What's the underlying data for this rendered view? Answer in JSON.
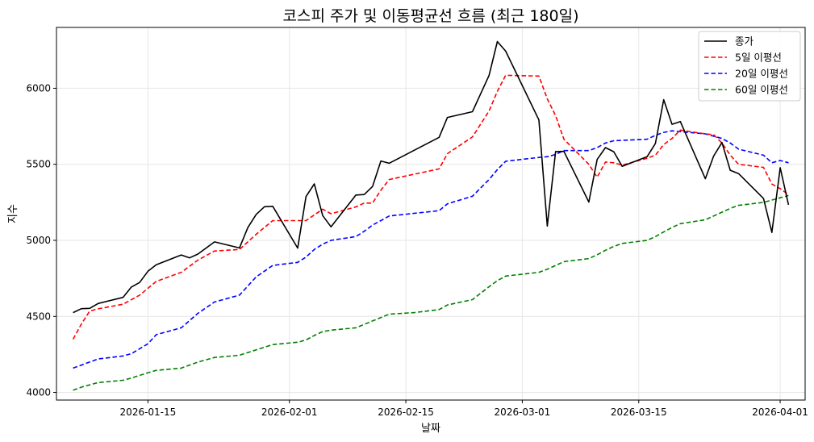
{
  "chart_data": {
    "type": "line",
    "title": "코스피 주가 및 이동평균선 흐름 (최근 180일)",
    "xlabel": "날짜",
    "ylabel": "지수",
    "x_ticks": [
      "2026-01-15",
      "2026-02-01",
      "2026-02-15",
      "2026-03-01",
      "2026-03-15",
      "2026-04-01"
    ],
    "y_ticks": [
      4000,
      4500,
      5000,
      5500,
      6000
    ],
    "xlim": [
      "2026-01-04",
      "2026-04-04"
    ],
    "ylim": [
      3950,
      6400
    ],
    "grid": true,
    "legend_position": "top-right",
    "colors": {
      "종가": "#000000",
      "5일 이평선": "#ff0000",
      "20일 이평선": "#0000ff",
      "60일 이평선": "#008000"
    },
    "series": [
      {
        "name": "종가",
        "style": "solid",
        "points": [
          [
            "2026-01-06",
            4525
          ],
          [
            "2026-01-07",
            4551
          ],
          [
            "2026-01-08",
            4553
          ],
          [
            "2026-01-09",
            4585
          ],
          [
            "2026-01-12",
            4625
          ],
          [
            "2026-01-13",
            4693
          ],
          [
            "2026-01-14",
            4723
          ],
          [
            "2026-01-15",
            4797
          ],
          [
            "2026-01-16",
            4840
          ],
          [
            "2026-01-19",
            4904
          ],
          [
            "2026-01-20",
            4885
          ],
          [
            "2026-01-21",
            4910
          ],
          [
            "2026-01-23",
            4990
          ],
          [
            "2026-01-26",
            4950
          ],
          [
            "2026-01-27",
            5084
          ],
          [
            "2026-01-28",
            5170
          ],
          [
            "2026-01-29",
            5221
          ],
          [
            "2026-01-30",
            5224
          ],
          [
            "2026-02-02",
            4949
          ],
          [
            "2026-02-03",
            5288
          ],
          [
            "2026-02-04",
            5371
          ],
          [
            "2026-02-05",
            5163
          ],
          [
            "2026-02-06",
            5089
          ],
          [
            "2026-02-09",
            5298
          ],
          [
            "2026-02-10",
            5301
          ],
          [
            "2026-02-11",
            5354
          ],
          [
            "2026-02-12",
            5522
          ],
          [
            "2026-02-13",
            5507
          ],
          [
            "2026-02-19",
            5677
          ],
          [
            "2026-02-20",
            5808
          ],
          [
            "2026-02-23",
            5846
          ],
          [
            "2026-02-25",
            6084
          ],
          [
            "2026-02-26",
            6307
          ],
          [
            "2026-02-27",
            6244
          ],
          [
            "2026-03-03",
            5792
          ],
          [
            "2026-03-04",
            5094
          ],
          [
            "2026-03-05",
            5584
          ],
          [
            "2026-03-06",
            5585
          ],
          [
            "2026-03-09",
            5252
          ],
          [
            "2026-03-10",
            5532
          ],
          [
            "2026-03-11",
            5610
          ],
          [
            "2026-03-12",
            5583
          ],
          [
            "2026-03-13",
            5487
          ],
          [
            "2026-03-16",
            5550
          ],
          [
            "2026-03-17",
            5637
          ],
          [
            "2026-03-18",
            5925
          ],
          [
            "2026-03-19",
            5763
          ],
          [
            "2026-03-20",
            5781
          ],
          [
            "2026-03-23",
            5405
          ],
          [
            "2026-03-24",
            5554
          ],
          [
            "2026-03-25",
            5643
          ],
          [
            "2026-03-26",
            5461
          ],
          [
            "2026-03-27",
            5439
          ],
          [
            "2026-03-30",
            5275
          ],
          [
            "2026-03-31",
            5052
          ],
          [
            "2026-04-01",
            5478
          ],
          [
            "2026-04-02",
            5234
          ]
        ]
      },
      {
        "name": "5일 이평선",
        "style": "dashed",
        "points": [
          [
            "2026-01-06",
            4350
          ],
          [
            "2026-01-07",
            4450
          ],
          [
            "2026-01-08",
            4535
          ],
          [
            "2026-01-09",
            4550
          ],
          [
            "2026-01-12",
            4580
          ],
          [
            "2026-01-14",
            4640
          ],
          [
            "2026-01-16",
            4730
          ],
          [
            "2026-01-19",
            4790
          ],
          [
            "2026-01-21",
            4870
          ],
          [
            "2026-01-23",
            4930
          ],
          [
            "2026-01-26",
            4940
          ],
          [
            "2026-01-27",
            4990
          ],
          [
            "2026-01-28",
            5040
          ],
          [
            "2026-01-30",
            5130
          ],
          [
            "2026-02-03",
            5130
          ],
          [
            "2026-02-05",
            5205
          ],
          [
            "2026-02-06",
            5175
          ],
          [
            "2026-02-09",
            5220
          ],
          [
            "2026-02-10",
            5245
          ],
          [
            "2026-02-11",
            5245
          ],
          [
            "2026-02-12",
            5330
          ],
          [
            "2026-02-13",
            5400
          ],
          [
            "2026-02-19",
            5470
          ],
          [
            "2026-02-20",
            5570
          ],
          [
            "2026-02-23",
            5680
          ],
          [
            "2026-02-25",
            5850
          ],
          [
            "2026-02-26",
            5980
          ],
          [
            "2026-02-27",
            6085
          ],
          [
            "2026-03-03",
            6080
          ],
          [
            "2026-03-04",
            5930
          ],
          [
            "2026-03-05",
            5820
          ],
          [
            "2026-03-06",
            5665
          ],
          [
            "2026-03-09",
            5500
          ],
          [
            "2026-03-10",
            5415
          ],
          [
            "2026-03-11",
            5515
          ],
          [
            "2026-03-12",
            5510
          ],
          [
            "2026-03-13",
            5495
          ],
          [
            "2026-03-16",
            5540
          ],
          [
            "2026-03-17",
            5560
          ],
          [
            "2026-03-18",
            5630
          ],
          [
            "2026-03-19",
            5670
          ],
          [
            "2026-03-20",
            5725
          ],
          [
            "2026-03-23",
            5700
          ],
          [
            "2026-03-24",
            5695
          ],
          [
            "2026-03-25",
            5640
          ],
          [
            "2026-03-26",
            5560
          ],
          [
            "2026-03-27",
            5500
          ],
          [
            "2026-03-30",
            5480
          ],
          [
            "2026-03-31",
            5370
          ],
          [
            "2026-04-01",
            5340
          ],
          [
            "2026-04-02",
            5300
          ]
        ]
      },
      {
        "name": "20일 이평선",
        "style": "dashed",
        "points": [
          [
            "2026-01-06",
            4160
          ],
          [
            "2026-01-07",
            4180
          ],
          [
            "2026-01-09",
            4220
          ],
          [
            "2026-01-12",
            4240
          ],
          [
            "2026-01-13",
            4255
          ],
          [
            "2026-01-15",
            4320
          ],
          [
            "2026-01-16",
            4380
          ],
          [
            "2026-01-19",
            4425
          ],
          [
            "2026-01-21",
            4520
          ],
          [
            "2026-01-23",
            4595
          ],
          [
            "2026-01-26",
            4640
          ],
          [
            "2026-01-27",
            4700
          ],
          [
            "2026-01-28",
            4760
          ],
          [
            "2026-01-30",
            4835
          ],
          [
            "2026-02-02",
            4855
          ],
          [
            "2026-02-03",
            4890
          ],
          [
            "2026-02-04",
            4940
          ],
          [
            "2026-02-05",
            4975
          ],
          [
            "2026-02-06",
            5000
          ],
          [
            "2026-02-09",
            5025
          ],
          [
            "2026-02-10",
            5060
          ],
          [
            "2026-02-11",
            5100
          ],
          [
            "2026-02-12",
            5130
          ],
          [
            "2026-02-13",
            5160
          ],
          [
            "2026-02-19",
            5195
          ],
          [
            "2026-02-20",
            5240
          ],
          [
            "2026-02-23",
            5290
          ],
          [
            "2026-02-25",
            5400
          ],
          [
            "2026-02-26",
            5465
          ],
          [
            "2026-02-27",
            5520
          ],
          [
            "2026-03-03",
            5545
          ],
          [
            "2026-03-04",
            5550
          ],
          [
            "2026-03-05",
            5565
          ],
          [
            "2026-03-06",
            5590
          ],
          [
            "2026-03-09",
            5590
          ],
          [
            "2026-03-10",
            5610
          ],
          [
            "2026-03-11",
            5640
          ],
          [
            "2026-03-12",
            5655
          ],
          [
            "2026-03-16",
            5665
          ],
          [
            "2026-03-17",
            5690
          ],
          [
            "2026-03-18",
            5710
          ],
          [
            "2026-03-19",
            5720
          ],
          [
            "2026-03-20",
            5715
          ],
          [
            "2026-03-23",
            5700
          ],
          [
            "2026-03-24",
            5685
          ],
          [
            "2026-03-25",
            5670
          ],
          [
            "2026-03-26",
            5640
          ],
          [
            "2026-03-27",
            5600
          ],
          [
            "2026-03-30",
            5560
          ],
          [
            "2026-03-31",
            5510
          ],
          [
            "2026-04-01",
            5525
          ],
          [
            "2026-04-02",
            5510
          ]
        ]
      },
      {
        "name": "60일 이평선",
        "style": "dashed",
        "points": [
          [
            "2026-01-06",
            4015
          ],
          [
            "2026-01-07",
            4035
          ],
          [
            "2026-01-09",
            4065
          ],
          [
            "2026-01-12",
            4080
          ],
          [
            "2026-01-13",
            4095
          ],
          [
            "2026-01-15",
            4130
          ],
          [
            "2026-01-16",
            4145
          ],
          [
            "2026-01-19",
            4160
          ],
          [
            "2026-01-21",
            4200
          ],
          [
            "2026-01-23",
            4230
          ],
          [
            "2026-01-26",
            4245
          ],
          [
            "2026-01-28",
            4280
          ],
          [
            "2026-01-30",
            4315
          ],
          [
            "2026-02-02",
            4330
          ],
          [
            "2026-02-03",
            4345
          ],
          [
            "2026-02-04",
            4375
          ],
          [
            "2026-02-05",
            4400
          ],
          [
            "2026-02-06",
            4410
          ],
          [
            "2026-02-09",
            4425
          ],
          [
            "2026-02-11",
            4470
          ],
          [
            "2026-02-13",
            4515
          ],
          [
            "2026-02-16",
            4525
          ],
          [
            "2026-02-19",
            4545
          ],
          [
            "2026-02-20",
            4575
          ],
          [
            "2026-02-23",
            4610
          ],
          [
            "2026-02-25",
            4695
          ],
          [
            "2026-02-26",
            4735
          ],
          [
            "2026-02-27",
            4765
          ],
          [
            "2026-03-03",
            4790
          ],
          [
            "2026-03-04",
            4810
          ],
          [
            "2026-03-05",
            4835
          ],
          [
            "2026-03-06",
            4860
          ],
          [
            "2026-03-09",
            4880
          ],
          [
            "2026-03-10",
            4905
          ],
          [
            "2026-03-11",
            4935
          ],
          [
            "2026-03-12",
            4960
          ],
          [
            "2026-03-13",
            4980
          ],
          [
            "2026-03-16",
            5000
          ],
          [
            "2026-03-17",
            5025
          ],
          [
            "2026-03-18",
            5055
          ],
          [
            "2026-03-19",
            5085
          ],
          [
            "2026-03-20",
            5110
          ],
          [
            "2026-03-23",
            5135
          ],
          [
            "2026-03-24",
            5160
          ],
          [
            "2026-03-25",
            5185
          ],
          [
            "2026-03-26",
            5210
          ],
          [
            "2026-03-27",
            5230
          ],
          [
            "2026-03-30",
            5250
          ],
          [
            "2026-03-31",
            5265
          ],
          [
            "2026-04-01",
            5280
          ],
          [
            "2026-04-02",
            5295
          ]
        ]
      }
    ]
  }
}
